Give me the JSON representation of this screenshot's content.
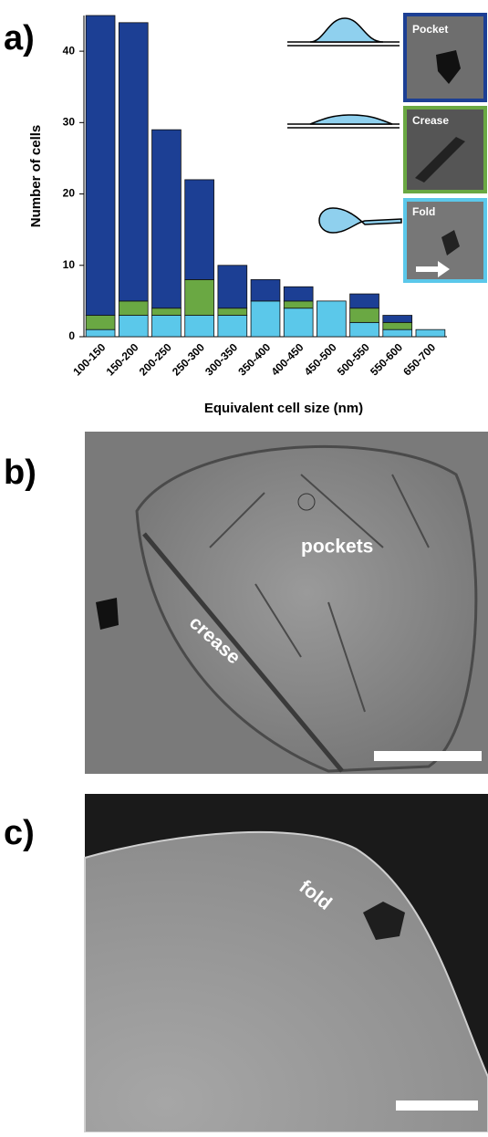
{
  "chart_data": {
    "type": "bar",
    "stacked": true,
    "xlabel": "Equivalent cell size (nm)",
    "ylabel": "Number of cells",
    "categories": [
      "100-150",
      "150-200",
      "200-250",
      "250-300",
      "300-350",
      "350-400",
      "400-450",
      "450-500",
      "500-550",
      "550-600",
      "650-700"
    ],
    "series": [
      {
        "name": "Fold",
        "color": "#5bc8ea",
        "values": [
          1,
          3,
          3,
          3,
          3,
          5,
          4,
          5,
          2,
          1,
          1
        ]
      },
      {
        "name": "Crease",
        "color": "#6aa843",
        "values": [
          2,
          2,
          1,
          5,
          1,
          0,
          1,
          0,
          2,
          1,
          0
        ]
      },
      {
        "name": "Pocket",
        "color": "#1c3f94",
        "values": [
          42,
          39,
          25,
          14,
          6,
          3,
          2,
          0,
          2,
          1,
          0
        ]
      }
    ],
    "ylim": [
      0,
      45
    ],
    "yticks": [
      0,
      10,
      20,
      30,
      40
    ]
  },
  "panels": {
    "a": "a)",
    "b": "b)",
    "c": "c)"
  },
  "micrographs": {
    "b": {
      "labels": [
        "pockets",
        "crease"
      ]
    },
    "c": {
      "labels": [
        "fold"
      ]
    }
  }
}
